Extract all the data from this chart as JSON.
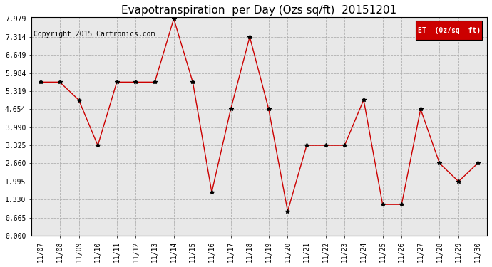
{
  "title": "Evapotranspiration  per Day (Ozs sq/ft)  20151201",
  "copyright": "Copyright 2015 Cartronics.com",
  "legend_label": "ET  (0z/sq  ft)",
  "legend_bg": "#cc0000",
  "legend_fg": "#ffffff",
  "x_labels": [
    "11/07",
    "11/08",
    "11/09",
    "11/10",
    "11/11",
    "11/12",
    "11/13",
    "11/14",
    "11/15",
    "11/16",
    "11/17",
    "11/18",
    "11/19",
    "11/20",
    "11/21",
    "11/22",
    "11/23",
    "11/24",
    "11/25",
    "11/26",
    "11/27",
    "11/28",
    "11/29",
    "11/30"
  ],
  "y_values": [
    5.65,
    5.65,
    4.99,
    3.32,
    5.65,
    5.65,
    5.65,
    7.979,
    5.65,
    1.6,
    4.654,
    7.314,
    4.654,
    0.9,
    3.325,
    3.325,
    3.325,
    5.0,
    1.15,
    1.15,
    4.654,
    2.66,
    1.995,
    2.66
  ],
  "y_ticks": [
    0.0,
    0.665,
    1.33,
    1.995,
    2.66,
    3.325,
    3.99,
    4.654,
    5.319,
    5.984,
    6.649,
    7.314,
    7.979
  ],
  "line_color": "#cc0000",
  "marker_color": "#000000",
  "bg_color": "#ffffff",
  "plot_bg": "#e8e8e8",
  "grid_color": "#b0b0b0",
  "title_fontsize": 11,
  "tick_fontsize": 7,
  "copyright_fontsize": 7
}
